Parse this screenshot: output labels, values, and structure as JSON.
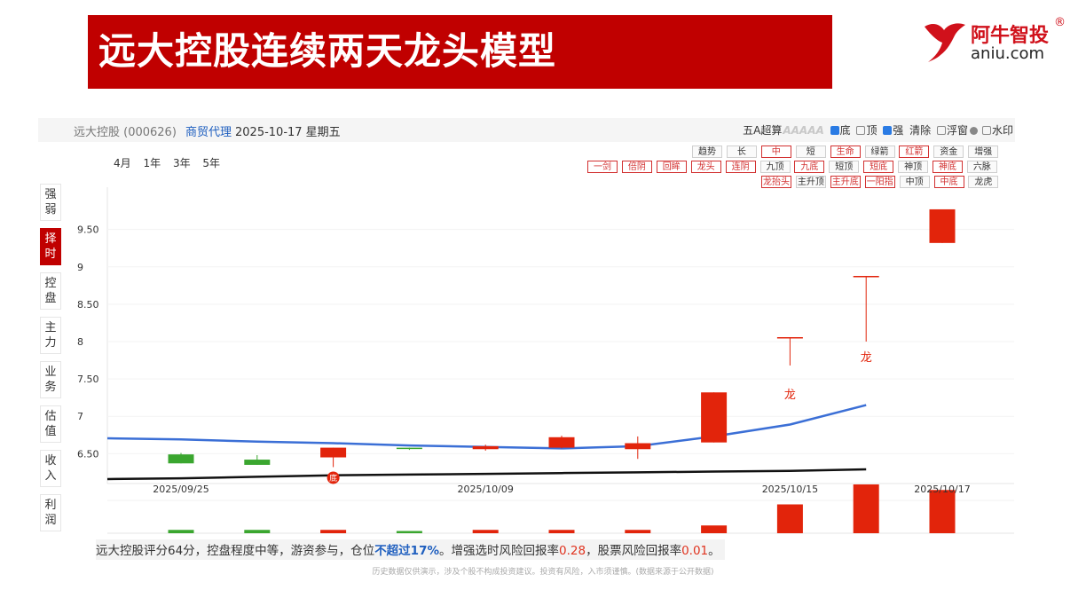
{
  "header": {
    "title": "远大控股连续两天龙头模型",
    "logo_name": "阿牛智投",
    "logo_reg": "®",
    "logo_domain": "aniu.com"
  },
  "info_bar": {
    "stock": "远大控股 (000626)",
    "industry": "商贸代理",
    "date": "2025-10-17 星期五",
    "algo_label": "五A超算",
    "a_marks": "AAAAA",
    "opt_bottom": "底",
    "opt_top": "顶",
    "opt_strong": "强",
    "opt_clear": "清除",
    "opt_float": "浮窗",
    "opt_watermark": "水印"
  },
  "ranges": [
    "4月",
    "1年",
    "3年",
    "5年"
  ],
  "side_tabs": [
    {
      "label": "强弱",
      "active": false
    },
    {
      "label": "择时",
      "active": true
    },
    {
      "label": "控盘",
      "active": false
    },
    {
      "label": "主力",
      "active": false
    },
    {
      "label": "业务",
      "active": false
    },
    {
      "label": "估值",
      "active": false
    },
    {
      "label": "收入",
      "active": false
    },
    {
      "label": "利润",
      "active": false
    }
  ],
  "indicator_tags": {
    "row1": [
      {
        "label": "趋势",
        "style": "gray"
      },
      {
        "label": "长",
        "style": "gray"
      },
      {
        "label": "中",
        "style": "red"
      },
      {
        "label": "短",
        "style": "gray"
      },
      {
        "label": "生命",
        "style": "red"
      },
      {
        "label": "绿箭",
        "style": "gray"
      },
      {
        "label": "红箭",
        "style": "red"
      },
      {
        "label": "资金",
        "style": "gray"
      },
      {
        "label": "增强",
        "style": "gray"
      }
    ],
    "row2": [
      {
        "label": "一剑",
        "style": "red"
      },
      {
        "label": "倍阴",
        "style": "red"
      },
      {
        "label": "回眸",
        "style": "red"
      },
      {
        "label": "龙头",
        "style": "red"
      },
      {
        "label": "连阴",
        "style": "red"
      },
      {
        "label": "九顶",
        "style": "gray"
      },
      {
        "label": "九底",
        "style": "red"
      },
      {
        "label": "短顶",
        "style": "gray"
      },
      {
        "label": "短底",
        "style": "red"
      },
      {
        "label": "神顶",
        "style": "gray"
      },
      {
        "label": "神底",
        "style": "red"
      },
      {
        "label": "六脉",
        "style": "gray"
      }
    ],
    "row3": [
      {
        "label": "龙抬头",
        "style": "red"
      },
      {
        "label": "主升顶",
        "style": "gray"
      },
      {
        "label": "主升底",
        "style": "red"
      },
      {
        "label": "一阳指",
        "style": "red"
      },
      {
        "label": "中顶",
        "style": "gray"
      },
      {
        "label": "中底",
        "style": "red"
      },
      {
        "label": "龙虎",
        "style": "gray"
      }
    ]
  },
  "chart_data": {
    "type": "candlestick",
    "ylim": [
      6.1,
      9.9
    ],
    "y_ticks": [
      "6.50",
      "7",
      "7.50",
      "8",
      "8.50",
      "9",
      "9.50"
    ],
    "x_tick_labels": [
      {
        "index": 0,
        "label": "2025/09/25"
      },
      {
        "index": 4,
        "label": "2025/10/09"
      },
      {
        "index": 8,
        "label": "2025/10/15"
      },
      {
        "index": 10,
        "label": "2025/10/17"
      }
    ],
    "candles": [
      {
        "open": 6.49,
        "close": 6.37,
        "high": 6.51,
        "low": 6.37
      },
      {
        "open": 6.42,
        "close": 6.35,
        "high": 6.48,
        "low": 6.35
      },
      {
        "open": 6.45,
        "close": 6.58,
        "high": 6.58,
        "low": 6.32
      },
      {
        "open": 6.57,
        "close": 6.56,
        "high": 6.58,
        "low": 6.55
      },
      {
        "open": 6.56,
        "close": 6.6,
        "high": 6.62,
        "low": 6.54
      },
      {
        "open": 6.58,
        "close": 6.72,
        "high": 6.74,
        "low": 6.57
      },
      {
        "open": 6.56,
        "close": 6.64,
        "high": 6.73,
        "low": 6.43
      },
      {
        "open": 6.65,
        "close": 7.32,
        "high": 7.32,
        "low": 6.65
      },
      {
        "open": 8.05,
        "close": 8.05,
        "high": 8.05,
        "low": 7.68
      },
      {
        "open": 8.87,
        "close": 8.87,
        "high": 8.87,
        "low": 8.0
      },
      {
        "open": 9.32,
        "close": 9.77,
        "high": 9.77,
        "low": 9.32
      }
    ],
    "blue_line": [
      6.69,
      6.66,
      6.64,
      6.61,
      6.59,
      6.57,
      6.6,
      6.73,
      6.89,
      7.15
    ],
    "black_line": [
      6.17,
      6.19,
      6.21,
      6.22,
      6.23,
      6.24,
      6.25,
      6.26,
      6.27,
      6.29
    ],
    "bottom_markers": [
      {
        "index": 2,
        "label": "底"
      }
    ],
    "signal_labels": [
      {
        "index": 9,
        "price": 7.8,
        "label": "龙"
      },
      {
        "index": 8,
        "price": 7.3,
        "label": "龙"
      }
    ],
    "volume": [
      3,
      3,
      3,
      2,
      3,
      3,
      3,
      7,
      26,
      44,
      39
    ],
    "volume_max": 44
  },
  "summary": {
    "part1": "远大控股评分64分，控盘程度中等，游资参与，仓位",
    "highlight": "不超过17%",
    "part2": "。增强选时风险回报率",
    "val1": "0.28",
    "part3": "，股票风险回报率",
    "val2": "0.01",
    "part4": "。"
  },
  "disclaimer": "历史数据仅供演示，涉及个股不构成投资建议。投资有风险，入市须谨慎。(数据来源于公开数据)",
  "colors": {
    "banner": "#c00000",
    "up": "#e2240b",
    "down": "#3aa62f",
    "ma_blue": "#3b6fd6",
    "ma_black": "#111111"
  }
}
